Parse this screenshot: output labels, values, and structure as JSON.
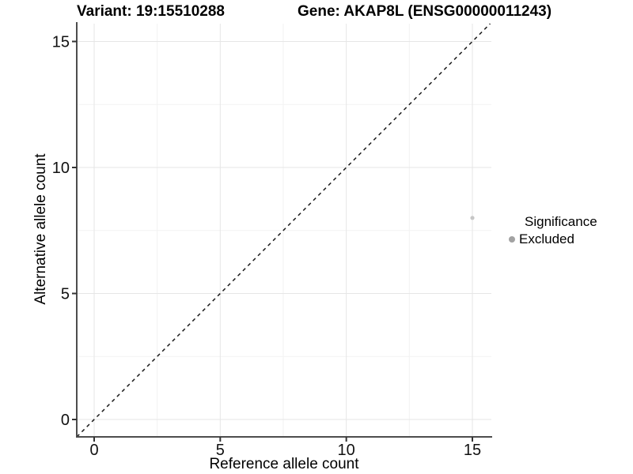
{
  "title": {
    "left": "Variant: 19:15510288",
    "right": "Gene: AKAP8L (ENSG00000011243)"
  },
  "chart_data": {
    "type": "scatter",
    "title": "Variant: 19:15510288    Gene: AKAP8L (ENSG00000011243)",
    "xlabel": "Reference allele count",
    "ylabel": "Alternative allele count",
    "xlim": [
      -0.75,
      15.75
    ],
    "ylim": [
      -0.75,
      15.75
    ],
    "xticks": [
      0,
      5,
      10,
      15
    ],
    "yticks": [
      0,
      5,
      10,
      15
    ],
    "minor_ticks": [
      2.5,
      7.5,
      12.5
    ],
    "grid": true,
    "reference_line": {
      "type": "identity",
      "slope": 1,
      "intercept": 0,
      "style": "dashed",
      "color": "#1a1a1a"
    },
    "series": [
      {
        "name": "Excluded",
        "color": "#c6c6c6",
        "radius": 2.6,
        "points": [
          {
            "x": 15,
            "y": 8
          }
        ]
      }
    ],
    "legend": {
      "title": "Significance",
      "position": "right",
      "items": [
        {
          "label": "Excluded",
          "color": "#a2a2a2"
        }
      ]
    },
    "colors": {
      "grid_major": "#e6e6e6",
      "grid_minor": "#f2f2f2",
      "axis_line": "#4d4d4d",
      "tick_mark": "#333333",
      "tick_label": "#111111",
      "background": "#ffffff"
    }
  }
}
